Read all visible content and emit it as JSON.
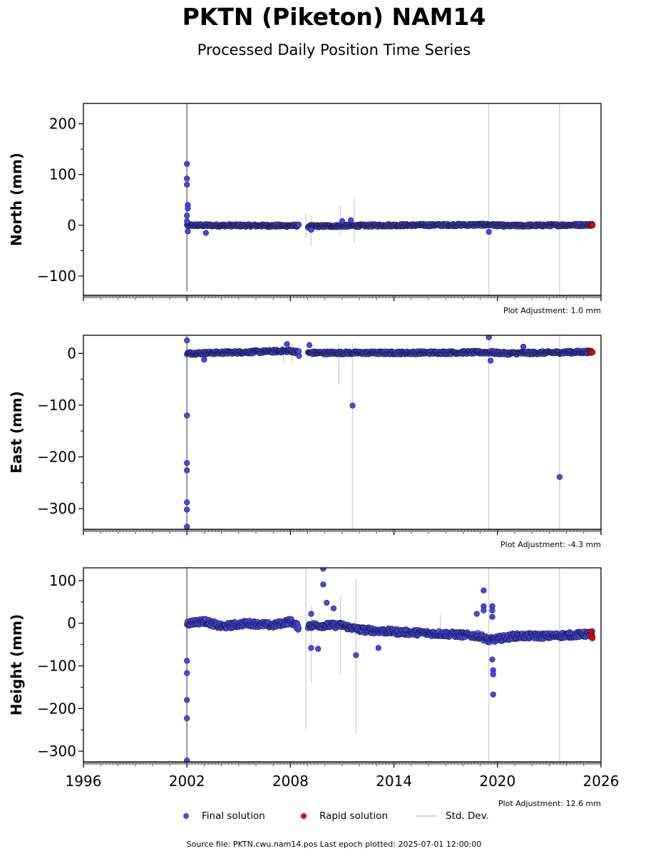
{
  "title": "PKTN (Piketon) NAM14",
  "subtitle": "Processed Daily Position Time Series",
  "legend": {
    "final": "Final solution",
    "rapid": "Rapid solution",
    "std": "Std. Dev."
  },
  "footer": {
    "source_label": "Source file:",
    "source_file": "PKTN.cwu.nam14.pos",
    "last_epoch_label": "Last epoch plotted:",
    "last_epoch": "2025-07-01 12:00:00"
  },
  "colors": {
    "final": "#4646f0",
    "rapid": "#e60000",
    "std": "#d3d3d3"
  },
  "chart_data": [
    {
      "type": "scatter",
      "ylabel": "North (mm)",
      "adjustment": "Plot Adjustment: 1.0 mm",
      "xlim": [
        1996,
        2026
      ],
      "ylim": [
        -138,
        240
      ],
      "yticks": [
        -100,
        0,
        100,
        200
      ],
      "x_ticks": [
        1996,
        2002,
        2008,
        2014,
        2020,
        2026
      ],
      "x_tick_labels_shown": false,
      "baseline": [
        [
          2002.0,
          0
        ],
        [
          2008.5,
          -1
        ],
        [
          2009.0,
          -2
        ],
        [
          2014.0,
          0
        ],
        [
          2019.5,
          1
        ],
        [
          2020.5,
          -1
        ],
        [
          2025.5,
          1
        ]
      ],
      "gaps": [
        [
          2008.5,
          2009.0
        ]
      ],
      "noise": 2.5,
      "outliers": [
        [
          2002.0,
          121
        ],
        [
          2002.0,
          92
        ],
        [
          2002.0,
          80
        ],
        [
          2002.05,
          40
        ],
        [
          2002.05,
          33
        ],
        [
          2002.0,
          19
        ],
        [
          2002.0,
          8
        ],
        [
          2002.05,
          -12
        ],
        [
          2003.1,
          -15
        ],
        [
          2009.2,
          -9
        ],
        [
          2011.0,
          8
        ],
        [
          2011.5,
          10
        ],
        [
          2019.5,
          -13
        ]
      ],
      "std_bars": [
        [
          2002.0,
          -130,
          240,
          "#7a7a7a"
        ],
        [
          2008.9,
          -25,
          25,
          "#d3d3d3"
        ],
        [
          2009.2,
          -40,
          20,
          "#d3d3d3"
        ],
        [
          2010.9,
          -20,
          40,
          "#d3d3d3"
        ],
        [
          2011.7,
          -35,
          55,
          "#d3d3d3"
        ],
        [
          2019.5,
          -138,
          240,
          "#d3d3d3"
        ],
        [
          2023.6,
          -138,
          240,
          "#d3d3d3"
        ]
      ],
      "rapid": [
        [
          2025.4,
          0
        ],
        [
          2025.45,
          1
        ],
        [
          2025.5,
          0
        ]
      ]
    },
    {
      "type": "scatter",
      "ylabel": "East (mm)",
      "adjustment": "Plot Adjustment: -4.3 mm",
      "xlim": [
        1996,
        2026
      ],
      "ylim": [
        -340,
        35
      ],
      "yticks": [
        -300,
        -200,
        -100,
        0
      ],
      "x_ticks": [
        1996,
        2002,
        2008,
        2014,
        2020,
        2026
      ],
      "x_tick_labels_shown": false,
      "baseline": [
        [
          2002.0,
          0
        ],
        [
          2005.0,
          2
        ],
        [
          2008.0,
          5
        ],
        [
          2008.5,
          2
        ],
        [
          2009.0,
          1
        ],
        [
          2014.0,
          1
        ],
        [
          2019.5,
          2
        ],
        [
          2020.5,
          0
        ],
        [
          2025.5,
          3
        ]
      ],
      "gaps": [
        [
          2008.5,
          2009.0
        ]
      ],
      "noise": 3,
      "outliers": [
        [
          2002.0,
          25
        ],
        [
          2002.0,
          -120
        ],
        [
          2002.0,
          -212
        ],
        [
          2002.0,
          -226
        ],
        [
          2002.0,
          -288
        ],
        [
          2002.0,
          -302
        ],
        [
          2002.0,
          -335
        ],
        [
          2003.0,
          -12
        ],
        [
          2007.8,
          18
        ],
        [
          2008.5,
          -5
        ],
        [
          2009.1,
          16
        ],
        [
          2011.6,
          -101
        ],
        [
          2019.5,
          31
        ],
        [
          2019.6,
          -14
        ],
        [
          2021.5,
          13
        ],
        [
          2023.6,
          -239
        ]
      ],
      "std_bars": [
        [
          2002.0,
          -340,
          35,
          "#7a7a7a"
        ],
        [
          2007.6,
          -20,
          20,
          "#d3d3d3"
        ],
        [
          2008.1,
          -20,
          20,
          "#d3d3d3"
        ],
        [
          2010.8,
          -60,
          20,
          "#d3d3d3"
        ],
        [
          2011.6,
          -340,
          20,
          "#d3d3d3"
        ],
        [
          2019.5,
          -340,
          35,
          "#d3d3d3"
        ],
        [
          2023.6,
          -340,
          35,
          "#d3d3d3"
        ]
      ],
      "rapid": [
        [
          2025.4,
          3
        ],
        [
          2025.45,
          4
        ],
        [
          2025.5,
          2
        ]
      ]
    },
    {
      "type": "scatter",
      "ylabel": "Height (mm)",
      "adjustment": "Plot Adjustment: 12.6 mm",
      "xlim": [
        1996,
        2026
      ],
      "ylim": [
        -325,
        130
      ],
      "yticks": [
        -300,
        -200,
        -100,
        0,
        100
      ],
      "x_ticks": [
        1996,
        2002,
        2008,
        2014,
        2020,
        2026
      ],
      "x_tick_labels_shown": true,
      "baseline": [
        [
          2002.0,
          0
        ],
        [
          2003.0,
          5
        ],
        [
          2004.0,
          -8
        ],
        [
          2005.5,
          0
        ],
        [
          2007.0,
          -5
        ],
        [
          2008.0,
          5
        ],
        [
          2008.5,
          -10
        ],
        [
          2009.0,
          -5
        ],
        [
          2011.0,
          -5
        ],
        [
          2012.0,
          -15
        ],
        [
          2014.0,
          -20
        ],
        [
          2017.0,
          -25
        ],
        [
          2019.0,
          -30
        ],
        [
          2019.5,
          -40
        ],
        [
          2021.0,
          -30
        ],
        [
          2023.0,
          -30
        ],
        [
          2025.5,
          -25
        ]
      ],
      "gaps": [
        [
          2008.5,
          2009.0
        ]
      ],
      "noise": 7,
      "outliers": [
        [
          2002.0,
          -88
        ],
        [
          2002.0,
          -117
        ],
        [
          2002.0,
          -180
        ],
        [
          2002.0,
          -223
        ],
        [
          2002.0,
          -322
        ],
        [
          2009.2,
          22
        ],
        [
          2009.2,
          -58
        ],
        [
          2009.6,
          -60
        ],
        [
          2009.9,
          128
        ],
        [
          2009.9,
          91
        ],
        [
          2010.1,
          48
        ],
        [
          2010.5,
          35
        ],
        [
          2011.8,
          -75
        ],
        [
          2013.1,
          -58
        ],
        [
          2018.8,
          22
        ],
        [
          2019.2,
          77
        ],
        [
          2019.2,
          40
        ],
        [
          2019.2,
          30
        ],
        [
          2019.7,
          40
        ],
        [
          2019.7,
          30
        ],
        [
          2019.7,
          15
        ],
        [
          2019.7,
          -85
        ],
        [
          2019.75,
          -110
        ],
        [
          2019.75,
          -120
        ],
        [
          2019.75,
          -167
        ]
      ],
      "std_bars": [
        [
          2002.0,
          -325,
          130,
          "#7a7a7a"
        ],
        [
          2008.9,
          -250,
          130,
          "#d3d3d3"
        ],
        [
          2009.2,
          -140,
          40,
          "#d3d3d3"
        ],
        [
          2010.9,
          -120,
          65,
          "#d3d3d3"
        ],
        [
          2011.8,
          -260,
          105,
          "#d3d3d3"
        ],
        [
          2016.7,
          -20,
          20,
          "#d3d3d3"
        ],
        [
          2019.5,
          -325,
          130,
          "#d3d3d3"
        ],
        [
          2023.6,
          -325,
          130,
          "#d3d3d3"
        ]
      ],
      "rapid": [
        [
          2025.4,
          -20
        ],
        [
          2025.45,
          -27
        ],
        [
          2025.5,
          -32
        ],
        [
          2025.5,
          -35
        ]
      ]
    }
  ]
}
